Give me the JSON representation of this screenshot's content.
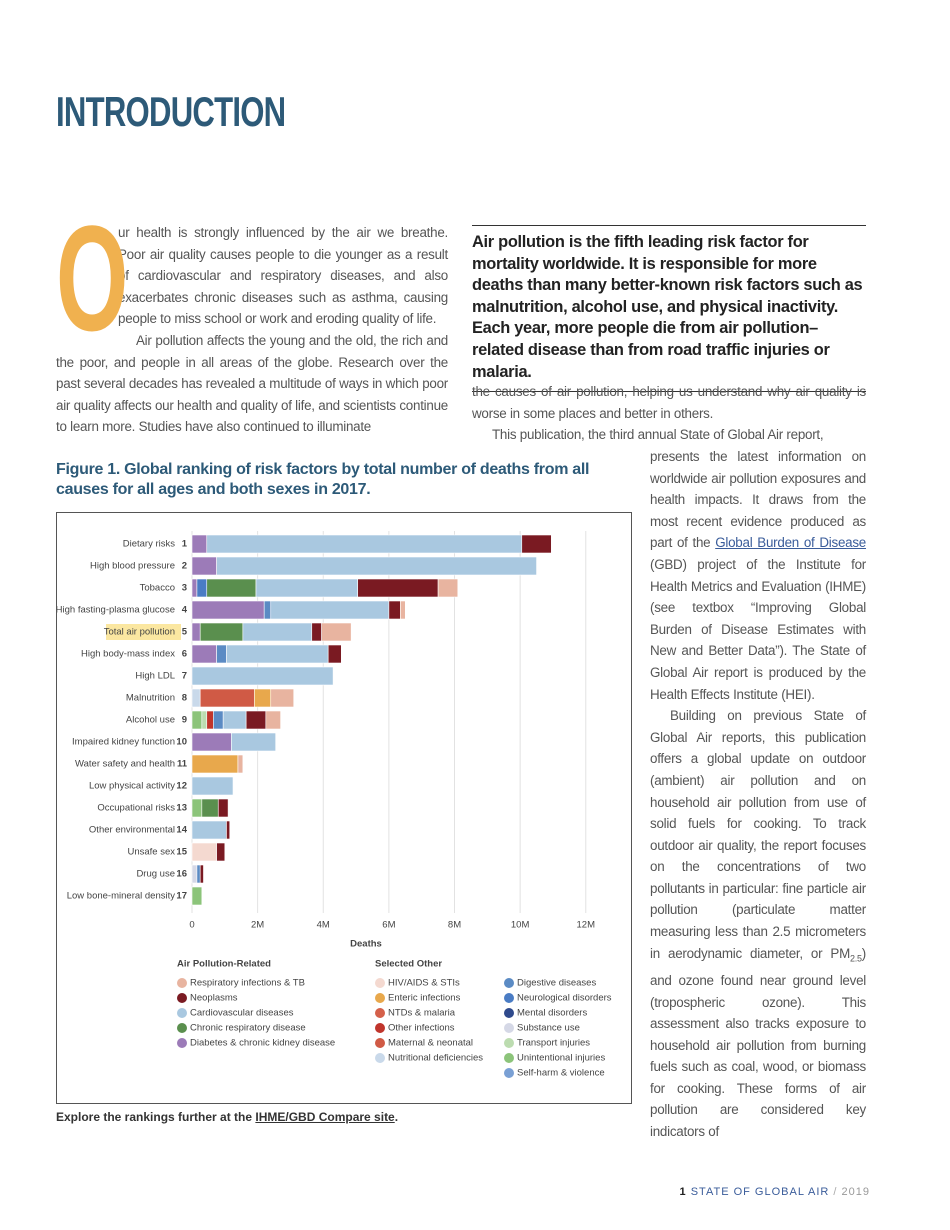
{
  "header": {
    "title": "INTRODUCTION"
  },
  "intro": {
    "drop_cap": "O",
    "p1": "ur health is strongly influenced by the air we breathe. Poor air quality causes people to die younger as a result of cardiovascular and respiratory diseases, and also exacerbates chronic diseases such as asthma, causing people to miss school or work and eroding quality of life.",
    "p2a": "Air pollution affects the young and the old, the rich and the poor, and people in all areas of the globe. Research over the past several decades has revealed a multitude of ways in which poor air quality affects our health and quality of life, and scientists continue to learn more. Studies have also continued to illuminate"
  },
  "pull_quote": "Air pollution is the fifth leading risk factor for mortality worldwide. It is responsible for more deaths than many better-known risk factors such as malnutrition, alcohol use, and physical inactivity. Each year, more people die from air pollution–related disease than from road traffic injuries or malaria.",
  "col2": {
    "p2b": "the causes of air pollution, helping us understand why air quality is worse in some places and better in others.",
    "p3a": "This publication, the third annual State of Global Air report,"
  },
  "col3": {
    "p3b": "presents the latest information on worldwide air pollution exposures and health impacts. It draws from the most recent evidence produced as part of the ",
    "p3_link": "Global Burden of Disease",
    "p3c": " (GBD) project of the Institute for Health Metrics and Evaluation (IHME) (see textbox “Improving Global Burden of Disease Estimates with New and Better Data”). The State of Global Air report is produced by the Health Effects Institute (HEI).",
    "p4a": "Building on previous State of Global Air reports, this publication offers a global update on outdoor (ambient) air pollution and on household air pollution from use of solid fuels for cooking. To track outdoor air quality, the report focuses on the concentrations of two pollutants in particular: fine particle air pollution (particulate matter measuring less than 2.5 micrometers in aerodynamic diameter, or PM",
    "p4_sub": "2.5",
    "p4b": ") and ozone found near ground level (tropospheric ozone). This assessment also tracks exposure to household air pollution from burning fuels such as coal, wood, or biomass for cooking. These forms of air pollution are considered key indicators of"
  },
  "figure": {
    "caption": "Figure 1. Global ranking of risk factors by total number of deaths from all causes for all ages and both sexes in 2017.",
    "note": "Explore the rankings further at the ",
    "note_link": "IHME/GBD Compare site",
    "note_end": "."
  },
  "footer": {
    "page": "1",
    "publication": "STATE OF GLOBAL AIR",
    "separator": "/",
    "year": "2019"
  },
  "chart_data": {
    "type": "stacked-barh",
    "categories": [
      "Dietary risks",
      "High blood pressure",
      "Tobacco",
      "High fasting-plasma glucose",
      "Total air pollution",
      "High body-mass index",
      "High LDL",
      "Malnutrition",
      "Alcohol use",
      "Impaired kidney function",
      "Water safety and health",
      "Low physical activity",
      "Occupational risks",
      "Other environmental",
      "Unsafe sex",
      "Drug use",
      "Low bone-mineral density"
    ],
    "ranks": [
      1,
      2,
      3,
      4,
      5,
      6,
      7,
      8,
      9,
      10,
      11,
      12,
      13,
      14,
      15,
      16,
      17
    ],
    "xlabel": "Deaths",
    "xlim": [
      0,
      14000000
    ],
    "xticks": [
      0,
      {
        "value": 2000000,
        "label": "2M"
      },
      {
        "value": 4000000,
        "label": "4M"
      },
      {
        "value": 6000000,
        "label": "6M"
      },
      {
        "value": 8000000,
        "label": "8M"
      },
      {
        "value": 10000000,
        "label": "10M"
      },
      {
        "value": 12000000,
        "label": "12M"
      }
    ],
    "grid": true,
    "legend_titles": [
      "Air Pollution-Related",
      "Selected Other"
    ],
    "series": [
      {
        "name": "Respiratory infections & TB",
        "color": "#e8b4a0",
        "values": [
          null,
          null,
          600000,
          150000,
          900000,
          null,
          null,
          700000,
          450000,
          null,
          150000,
          null,
          null,
          null,
          null,
          null,
          null
        ]
      },
      {
        "name": "Neoplasms",
        "color": "#7a1a22",
        "values": [
          900000,
          null,
          2450000,
          350000,
          300000,
          400000,
          null,
          null,
          600000,
          null,
          null,
          null,
          300000,
          100000,
          250000,
          100000,
          null
        ]
      },
      {
        "name": "Cardiovascular diseases",
        "color": "#a9c8e0",
        "values": [
          9600000,
          9750000,
          3100000,
          3600000,
          2100000,
          3100000,
          4300000,
          null,
          700000,
          1350000,
          null,
          1250000,
          null,
          1050000,
          null,
          null,
          null
        ]
      },
      {
        "name": "Chronic respiratory disease",
        "color": "#5a8f4e",
        "values": [
          null,
          null,
          1500000,
          null,
          1300000,
          null,
          null,
          null,
          null,
          null,
          null,
          null,
          500000,
          null,
          null,
          null,
          null
        ]
      },
      {
        "name": "Diabetes & chronic kidney disease",
        "color": "#9c7bb8",
        "values": [
          450000,
          750000,
          150000,
          2200000,
          250000,
          750000,
          null,
          null,
          null,
          1200000,
          null,
          null,
          null,
          null,
          null,
          null,
          null
        ]
      },
      {
        "name": "HIV/AIDS & STIs",
        "color": "#f4d9d0",
        "values": [
          null,
          null,
          null,
          null,
          null,
          null,
          null,
          null,
          null,
          null,
          null,
          null,
          null,
          null,
          750000,
          null,
          null
        ]
      },
      {
        "name": "Enteric infections",
        "color": "#e8a84c",
        "values": [
          null,
          null,
          null,
          null,
          null,
          null,
          null,
          500000,
          null,
          null,
          1400000,
          null,
          null,
          null,
          null,
          null,
          null
        ]
      },
      {
        "name": "NTDs & malaria",
        "color": "#d4604a",
        "values": [
          null,
          null,
          null,
          null,
          null,
          null,
          null,
          null,
          null,
          null,
          null,
          null,
          null,
          null,
          null,
          null,
          null
        ]
      },
      {
        "name": "Other infections",
        "color": "#c0352c",
        "values": [
          null,
          null,
          null,
          null,
          null,
          null,
          null,
          null,
          200000,
          null,
          null,
          null,
          null,
          null,
          null,
          null,
          null
        ]
      },
      {
        "name": "Maternal & neonatal",
        "color": "#d05a45",
        "values": [
          null,
          null,
          null,
          null,
          null,
          null,
          null,
          1650000,
          null,
          null,
          null,
          null,
          null,
          null,
          null,
          null,
          null
        ]
      },
      {
        "name": "Nutritional deficiencies",
        "color": "#c9d9ea",
        "values": [
          null,
          null,
          null,
          null,
          null,
          null,
          null,
          250000,
          null,
          null,
          null,
          null,
          null,
          null,
          null,
          null,
          null
        ]
      },
      {
        "name": "Digestive diseases",
        "color": "#5b8bc4",
        "values": [
          null,
          null,
          null,
          200000,
          null,
          300000,
          null,
          null,
          300000,
          null,
          null,
          null,
          null,
          null,
          null,
          100000,
          null
        ]
      },
      {
        "name": "Neurological disorders",
        "color": "#4a7cc4",
        "values": [
          null,
          null,
          300000,
          null,
          null,
          null,
          null,
          null,
          null,
          null,
          null,
          null,
          null,
          null,
          null,
          null,
          null
        ]
      },
      {
        "name": "Mental disorders",
        "color": "#2f4a8c",
        "values": [
          null,
          null,
          null,
          null,
          null,
          null,
          null,
          null,
          null,
          null,
          null,
          null,
          null,
          null,
          null,
          null,
          null
        ]
      },
      {
        "name": "Substance use",
        "color": "#d5d8e6",
        "values": [
          null,
          null,
          null,
          null,
          null,
          null,
          null,
          null,
          null,
          null,
          null,
          null,
          null,
          null,
          null,
          150000,
          null
        ]
      },
      {
        "name": "Transport injuries",
        "color": "#bcdcb0",
        "values": [
          null,
          null,
          null,
          null,
          null,
          null,
          null,
          null,
          150000,
          null,
          null,
          null,
          null,
          null,
          null,
          null,
          null
        ]
      },
      {
        "name": "Unintentional injuries",
        "color": "#8cc47a",
        "values": [
          null,
          null,
          null,
          null,
          null,
          null,
          null,
          null,
          300000,
          null,
          null,
          null,
          300000,
          null,
          null,
          null,
          300000
        ]
      },
      {
        "name": "Self-harm & violence",
        "color": "#7aa0d4",
        "values": [
          null,
          null,
          null,
          null,
          null,
          null,
          null,
          null,
          null,
          null,
          null,
          null,
          null,
          null,
          null,
          null,
          null
        ]
      }
    ]
  }
}
